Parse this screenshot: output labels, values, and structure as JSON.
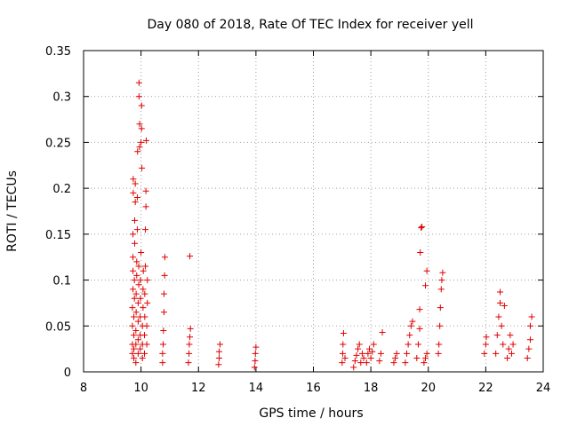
{
  "chart_data": {
    "type": "scatter",
    "title": "Day 080 of 2018, Rate Of TEC Index for receiver yell",
    "xlabel": "GPS time / hours",
    "ylabel": "ROTI / TECUs",
    "xlim": [
      8,
      24
    ],
    "ylim": [
      0,
      0.35
    ],
    "xticks": [
      8,
      10,
      12,
      14,
      16,
      18,
      20,
      22,
      24
    ],
    "yticks": [
      0,
      0.05,
      0.1,
      0.15,
      0.2,
      0.25,
      0.3,
      0.35
    ],
    "xtick_labels": [
      "8",
      "10",
      "12",
      "14",
      "16",
      "18",
      "20",
      "22",
      "24"
    ],
    "ytick_labels": [
      "0",
      "0.05",
      "0.1",
      "0.15",
      "0.2",
      "0.25",
      "0.3",
      "0.35"
    ],
    "grid": true,
    "marker": "+",
    "color": "#e00000",
    "series": [
      {
        "name": "ROTI",
        "points": [
          [
            9.7,
            0.02
          ],
          [
            9.7,
            0.03
          ],
          [
            9.7,
            0.05
          ],
          [
            9.7,
            0.07
          ],
          [
            9.72,
            0.09
          ],
          [
            9.72,
            0.11
          ],
          [
            9.72,
            0.125
          ],
          [
            9.72,
            0.15
          ],
          [
            9.73,
            0.195
          ],
          [
            9.73,
            0.21
          ],
          [
            9.75,
            0.015
          ],
          [
            9.75,
            0.025
          ],
          [
            9.75,
            0.04
          ],
          [
            9.75,
            0.06
          ],
          [
            9.77,
            0.08
          ],
          [
            9.77,
            0.1
          ],
          [
            9.78,
            0.14
          ],
          [
            9.78,
            0.165
          ],
          [
            9.8,
            0.185
          ],
          [
            9.8,
            0.205
          ],
          [
            9.82,
            0.01
          ],
          [
            9.82,
            0.03
          ],
          [
            9.82,
            0.045
          ],
          [
            9.83,
            0.065
          ],
          [
            9.83,
            0.085
          ],
          [
            9.85,
            0.105
          ],
          [
            9.85,
            0.12
          ],
          [
            9.87,
            0.155
          ],
          [
            9.87,
            0.19
          ],
          [
            9.88,
            0.24
          ],
          [
            9.9,
            0.02
          ],
          [
            9.9,
            0.035
          ],
          [
            9.9,
            0.055
          ],
          [
            9.9,
            0.075
          ],
          [
            9.92,
            0.095
          ],
          [
            9.92,
            0.115
          ],
          [
            9.93,
            0.3
          ],
          [
            9.93,
            0.315
          ],
          [
            9.95,
            0.27
          ],
          [
            9.95,
            0.245
          ],
          [
            9.97,
            0.025
          ],
          [
            9.97,
            0.04
          ],
          [
            9.97,
            0.06
          ],
          [
            9.98,
            0.08
          ],
          [
            9.98,
            0.1
          ],
          [
            10.0,
            0.13
          ],
          [
            10.0,
            0.25
          ],
          [
            10.02,
            0.265
          ],
          [
            10.02,
            0.29
          ],
          [
            10.03,
            0.222
          ],
          [
            10.05,
            0.015
          ],
          [
            10.05,
            0.03
          ],
          [
            10.05,
            0.05
          ],
          [
            10.07,
            0.07
          ],
          [
            10.07,
            0.09
          ],
          [
            10.08,
            0.11
          ],
          [
            10.12,
            0.02
          ],
          [
            10.12,
            0.04
          ],
          [
            10.13,
            0.06
          ],
          [
            10.13,
            0.085
          ],
          [
            10.15,
            0.115
          ],
          [
            10.15,
            0.155
          ],
          [
            10.17,
            0.18
          ],
          [
            10.17,
            0.197
          ],
          [
            10.18,
            0.252
          ],
          [
            10.2,
            0.03
          ],
          [
            10.2,
            0.05
          ],
          [
            10.22,
            0.075
          ],
          [
            10.22,
            0.1
          ],
          [
            10.75,
            0.01
          ],
          [
            10.75,
            0.02
          ],
          [
            10.77,
            0.03
          ],
          [
            10.78,
            0.045
          ],
          [
            10.8,
            0.065
          ],
          [
            10.8,
            0.085
          ],
          [
            10.82,
            0.105
          ],
          [
            10.83,
            0.125
          ],
          [
            11.65,
            0.01
          ],
          [
            11.67,
            0.02
          ],
          [
            11.68,
            0.03
          ],
          [
            11.7,
            0.038
          ],
          [
            11.72,
            0.047
          ],
          [
            11.7,
            0.126
          ],
          [
            12.7,
            0.008
          ],
          [
            12.72,
            0.015
          ],
          [
            12.72,
            0.022
          ],
          [
            12.75,
            0.03
          ],
          [
            13.95,
            0.005
          ],
          [
            13.97,
            0.012
          ],
          [
            13.98,
            0.02
          ],
          [
            14.0,
            0.027
          ],
          [
            17.0,
            0.01
          ],
          [
            17.02,
            0.02
          ],
          [
            17.03,
            0.03
          ],
          [
            17.05,
            0.042
          ],
          [
            17.1,
            0.015
          ],
          [
            17.4,
            0.005
          ],
          [
            17.45,
            0.012
          ],
          [
            17.5,
            0.018
          ],
          [
            17.55,
            0.025
          ],
          [
            17.6,
            0.03
          ],
          [
            17.65,
            0.01
          ],
          [
            17.7,
            0.02
          ],
          [
            17.75,
            0.015
          ],
          [
            17.85,
            0.01
          ],
          [
            17.9,
            0.02
          ],
          [
            17.95,
            0.025
          ],
          [
            18.0,
            0.015
          ],
          [
            18.05,
            0.022
          ],
          [
            18.1,
            0.03
          ],
          [
            18.3,
            0.012
          ],
          [
            18.35,
            0.02
          ],
          [
            18.4,
            0.043
          ],
          [
            18.8,
            0.01
          ],
          [
            18.85,
            0.015
          ],
          [
            18.9,
            0.02
          ],
          [
            19.2,
            0.01
          ],
          [
            19.25,
            0.02
          ],
          [
            19.3,
            0.03
          ],
          [
            19.35,
            0.04
          ],
          [
            19.4,
            0.05
          ],
          [
            19.45,
            0.055
          ],
          [
            19.6,
            0.015
          ],
          [
            19.65,
            0.03
          ],
          [
            19.7,
            0.047
          ],
          [
            19.7,
            0.068
          ],
          [
            19.72,
            0.13
          ],
          [
            19.75,
            0.157
          ],
          [
            19.78,
            0.158
          ],
          [
            19.85,
            0.01
          ],
          [
            19.9,
            0.015
          ],
          [
            19.95,
            0.02
          ],
          [
            19.9,
            0.094
          ],
          [
            19.95,
            0.11
          ],
          [
            20.35,
            0.02
          ],
          [
            20.37,
            0.03
          ],
          [
            20.4,
            0.05
          ],
          [
            20.42,
            0.07
          ],
          [
            20.45,
            0.09
          ],
          [
            20.47,
            0.1
          ],
          [
            20.5,
            0.108
          ],
          [
            21.95,
            0.02
          ],
          [
            22.0,
            0.03
          ],
          [
            22.02,
            0.038
          ],
          [
            22.35,
            0.02
          ],
          [
            22.4,
            0.04
          ],
          [
            22.45,
            0.06
          ],
          [
            22.5,
            0.075
          ],
          [
            22.5,
            0.087
          ],
          [
            22.55,
            0.05
          ],
          [
            22.6,
            0.03
          ],
          [
            22.65,
            0.072
          ],
          [
            22.75,
            0.015
          ],
          [
            22.8,
            0.025
          ],
          [
            22.85,
            0.04
          ],
          [
            22.9,
            0.02
          ],
          [
            22.95,
            0.03
          ],
          [
            23.45,
            0.015
          ],
          [
            23.5,
            0.025
          ],
          [
            23.55,
            0.035
          ],
          [
            23.55,
            0.05
          ],
          [
            23.6,
            0.06
          ]
        ]
      }
    ]
  }
}
